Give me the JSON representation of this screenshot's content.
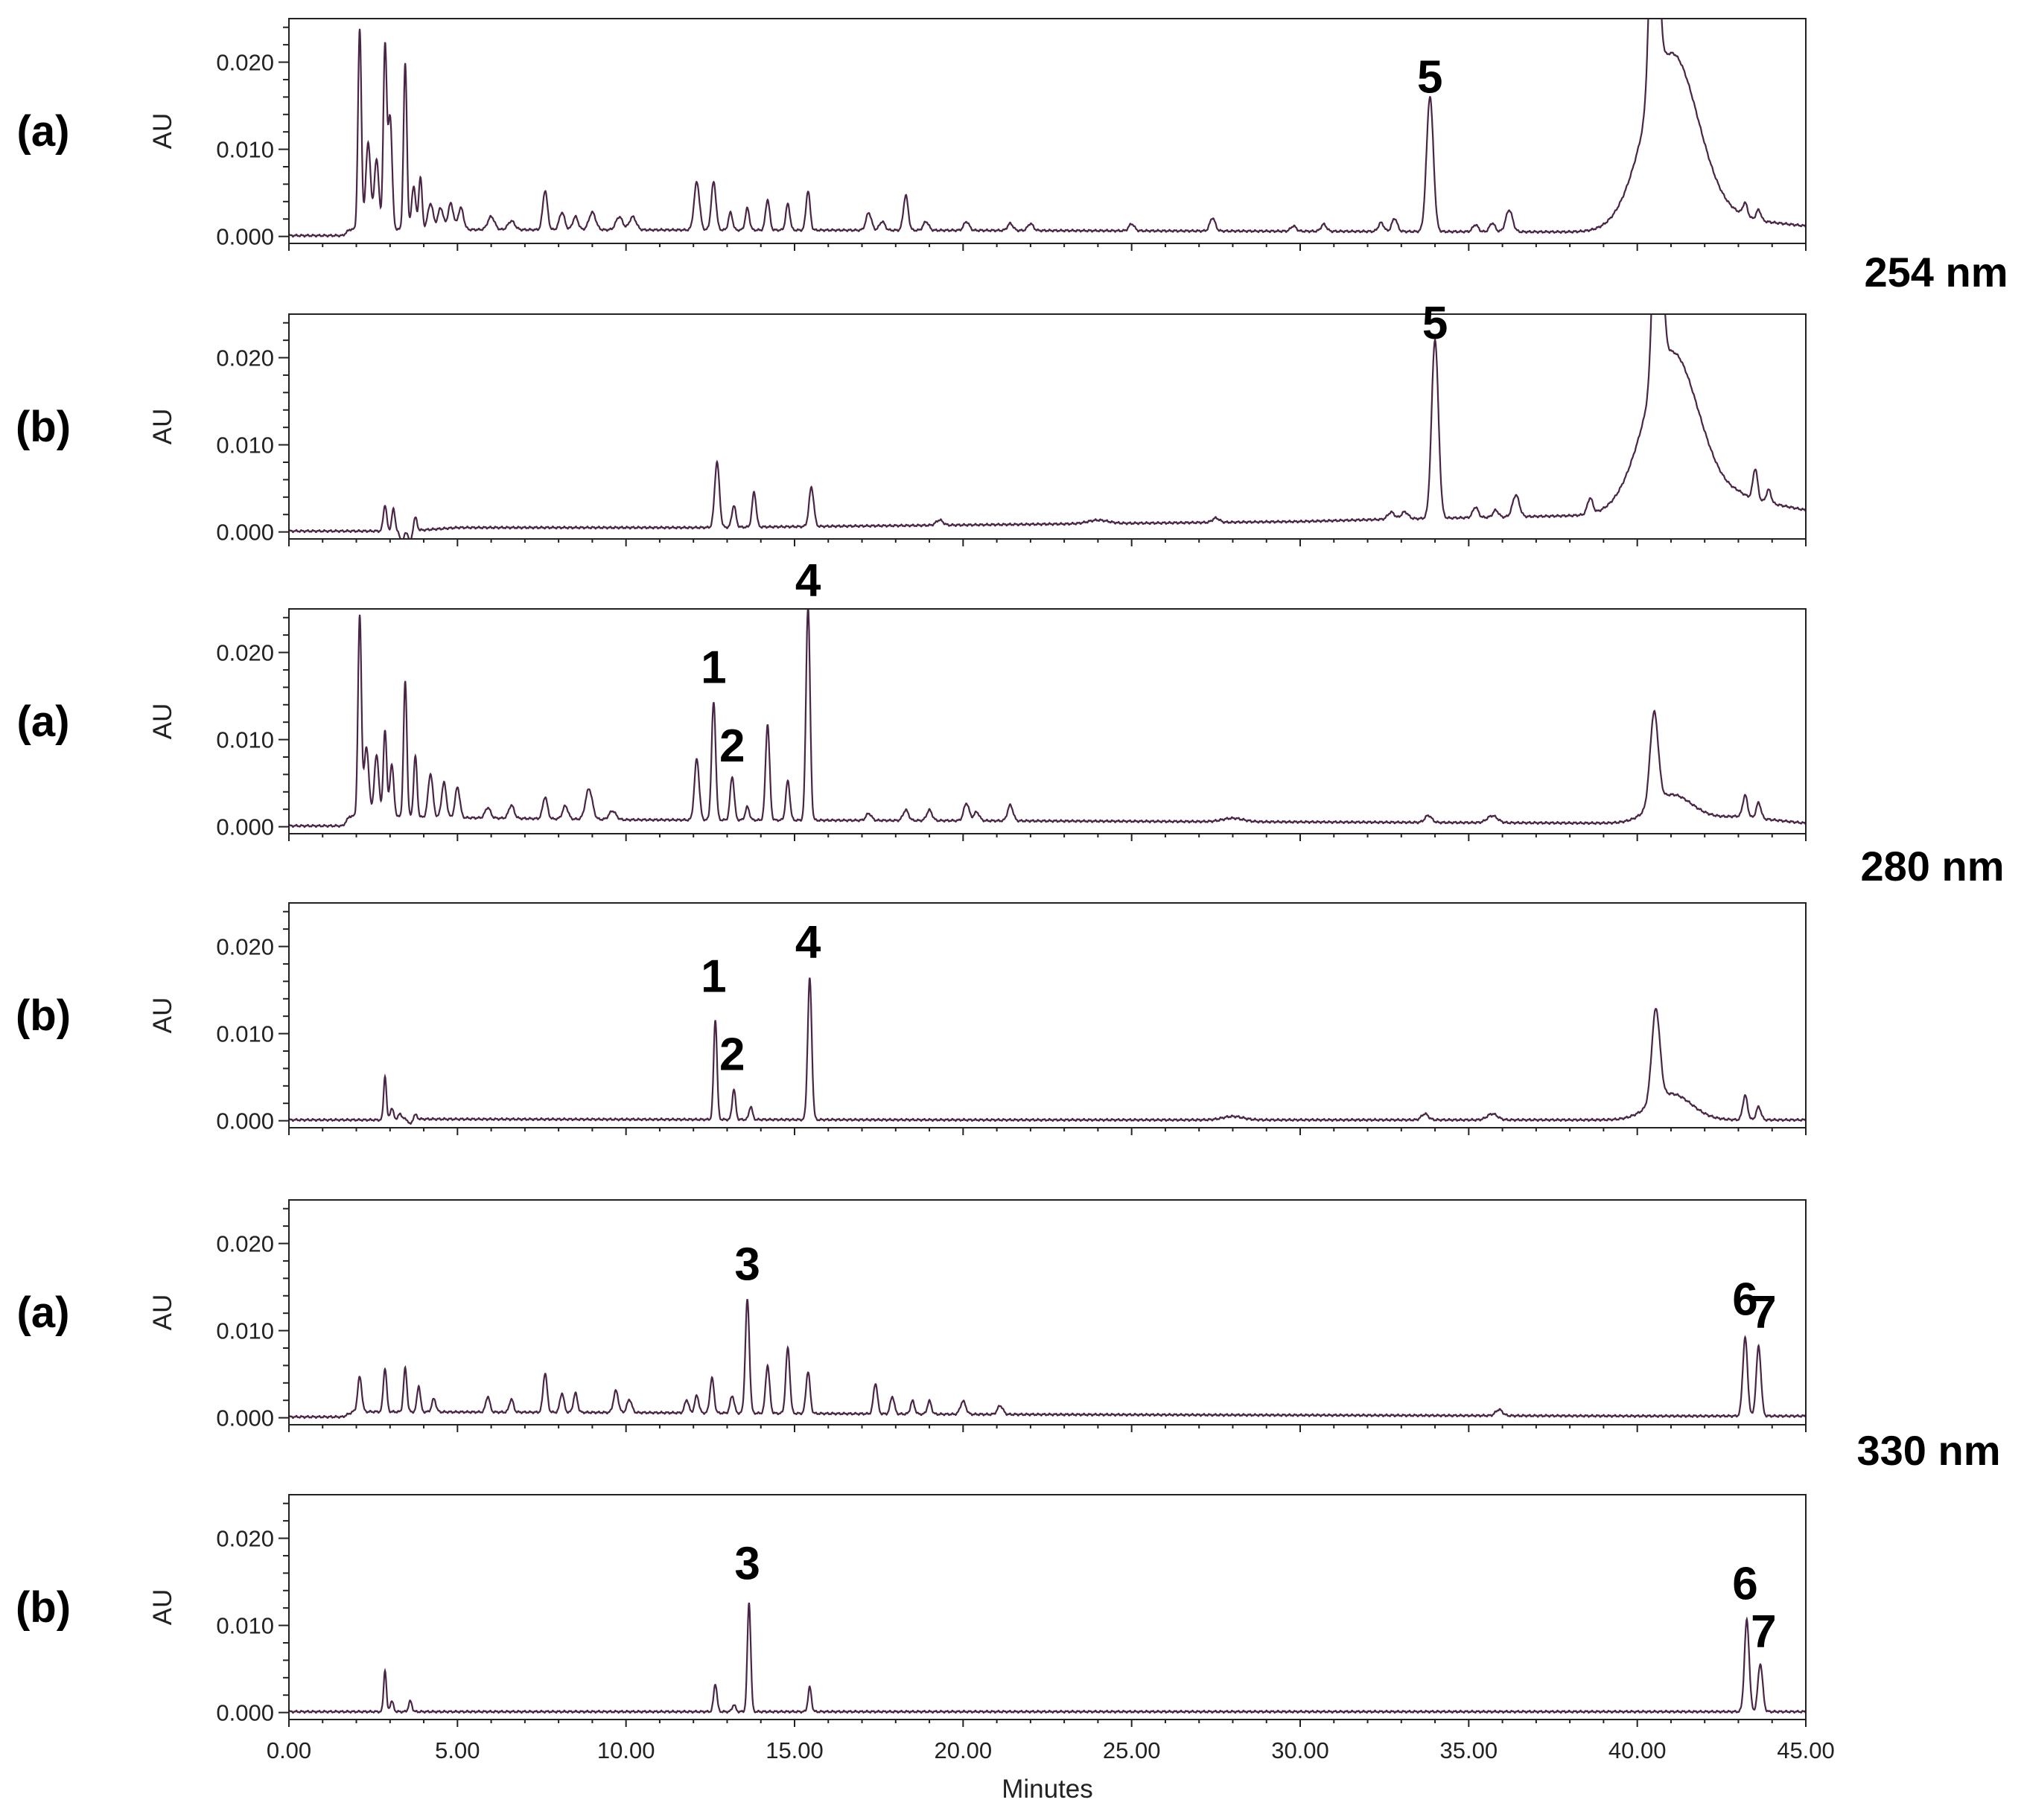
{
  "chart_data": {
    "type": "line",
    "title": "",
    "xlabel": "Minutes",
    "ylabel": "AU",
    "xlim": [
      0,
      45
    ],
    "ylim": [
      -0.0008,
      0.025
    ],
    "x_ticks": [
      "0.00",
      "5.00",
      "10.00",
      "15.00",
      "20.00",
      "25.00",
      "30.00",
      "35.00",
      "40.00",
      "45.00"
    ],
    "y_ticks": [
      "0.000",
      "0.010",
      "0.020"
    ],
    "line_color": "#4a2545",
    "wavelength_groups": [
      {
        "label": "254 nm",
        "panels": [
          0,
          1
        ]
      },
      {
        "label": "280 nm",
        "panels": [
          2,
          3
        ]
      },
      {
        "label": "330 nm",
        "panels": [
          4,
          5
        ]
      }
    ],
    "panels": [
      {
        "label": "(a)",
        "baseline": [
          [
            0,
            0.0001
          ],
          [
            1.6,
            0.0001
          ],
          [
            1.8,
            0.0008
          ],
          [
            20,
            0.0007
          ],
          [
            39.9,
            0.0005
          ],
          [
            43,
            0.002
          ],
          [
            45,
            0.0012
          ]
        ],
        "peaks": [
          [
            2.1,
            0.023,
            0.05
          ],
          [
            2.35,
            0.01,
            0.07
          ],
          [
            2.6,
            0.008,
            0.07
          ],
          [
            2.85,
            0.021,
            0.05
          ],
          [
            3.0,
            0.013,
            0.06
          ],
          [
            3.45,
            0.019,
            0.05
          ],
          [
            3.7,
            0.005,
            0.06
          ],
          [
            3.9,
            0.006,
            0.05
          ],
          [
            4.2,
            0.003,
            0.08
          ],
          [
            4.5,
            0.0025,
            0.08
          ],
          [
            4.8,
            0.003,
            0.08
          ],
          [
            5.1,
            0.0025,
            0.08
          ],
          [
            6.0,
            0.0015,
            0.1
          ],
          [
            6.6,
            0.001,
            0.1
          ],
          [
            7.6,
            0.0045,
            0.07
          ],
          [
            8.1,
            0.002,
            0.08
          ],
          [
            8.5,
            0.0015,
            0.08
          ],
          [
            9.0,
            0.002,
            0.1
          ],
          [
            9.8,
            0.0015,
            0.1
          ],
          [
            10.2,
            0.0015,
            0.1
          ],
          [
            12.1,
            0.0055,
            0.08
          ],
          [
            12.6,
            0.0055,
            0.07
          ],
          [
            13.1,
            0.002,
            0.06
          ],
          [
            13.6,
            0.0025,
            0.06
          ],
          [
            14.2,
            0.0035,
            0.06
          ],
          [
            14.8,
            0.003,
            0.06
          ],
          [
            15.4,
            0.0045,
            0.06
          ],
          [
            17.2,
            0.002,
            0.08
          ],
          [
            17.6,
            0.001,
            0.08
          ],
          [
            18.3,
            0.004,
            0.07
          ],
          [
            18.9,
            0.001,
            0.08
          ],
          [
            20.1,
            0.001,
            0.08
          ],
          [
            21.4,
            0.0008,
            0.08
          ],
          [
            22.0,
            0.0008,
            0.08
          ],
          [
            25.0,
            0.0008,
            0.08
          ],
          [
            27.4,
            0.0015,
            0.08
          ],
          [
            29.8,
            0.0006,
            0.08
          ],
          [
            30.7,
            0.0008,
            0.08
          ],
          [
            32.4,
            0.001,
            0.08
          ],
          [
            32.8,
            0.0015,
            0.08
          ],
          [
            33.85,
            0.0155,
            0.1
          ],
          [
            35.2,
            0.0008,
            0.08
          ],
          [
            35.7,
            0.001,
            0.08
          ],
          [
            36.2,
            0.0025,
            0.1
          ],
          [
            40.5,
            0.03,
            0.12
          ],
          [
            41.0,
            0.02,
            0.8
          ],
          [
            43.2,
            0.0015,
            0.07
          ],
          [
            43.6,
            0.0012,
            0.07
          ]
        ],
        "annotations": [
          {
            "text": "5",
            "x": 33.85,
            "y": 0.0165
          }
        ]
      },
      {
        "label": "(b)",
        "baseline": [
          [
            0,
            0.0001
          ],
          [
            2.5,
            0.0001
          ],
          [
            3.5,
            0.0001
          ],
          [
            5,
            0.0005
          ],
          [
            12,
            0.0005
          ],
          [
            20,
            0.0008
          ],
          [
            30,
            0.0012
          ],
          [
            33,
            0.0015
          ],
          [
            40,
            0.002
          ],
          [
            43,
            0.004
          ],
          [
            45,
            0.0025
          ]
        ],
        "peaks": [
          [
            2.85,
            0.003,
            0.05
          ],
          [
            3.1,
            0.0025,
            0.05
          ],
          [
            3.35,
            -0.0012,
            0.06
          ],
          [
            3.75,
            0.0015,
            0.05
          ],
          [
            3.6,
            -0.0012,
            0.05
          ],
          [
            12.7,
            0.0075,
            0.07
          ],
          [
            13.2,
            0.0025,
            0.06
          ],
          [
            13.8,
            0.004,
            0.06
          ],
          [
            15.5,
            0.0045,
            0.07
          ],
          [
            19.3,
            0.0006,
            0.1
          ],
          [
            24.0,
            0.0004,
            0.3
          ],
          [
            27.5,
            0.0005,
            0.1
          ],
          [
            32.7,
            0.0008,
            0.1
          ],
          [
            33.1,
            0.0008,
            0.1
          ],
          [
            34.0,
            0.0205,
            0.1
          ],
          [
            35.2,
            0.0012,
            0.08
          ],
          [
            35.8,
            0.0008,
            0.08
          ],
          [
            36.4,
            0.0025,
            0.1
          ],
          [
            38.6,
            0.0018,
            0.08
          ],
          [
            40.6,
            0.03,
            0.12
          ],
          [
            41.0,
            0.018,
            0.8
          ],
          [
            43.5,
            0.0035,
            0.07
          ],
          [
            43.9,
            0.0015,
            0.07
          ]
        ],
        "annotations": [
          {
            "text": "5",
            "x": 34.0,
            "y": 0.0222
          }
        ]
      },
      {
        "label": "(a)",
        "baseline": [
          [
            0,
            0.0001
          ],
          [
            1.6,
            0.0001
          ],
          [
            1.8,
            0.0012
          ],
          [
            10,
            0.0008
          ],
          [
            20,
            0.0007
          ],
          [
            39.9,
            0.0004
          ],
          [
            43,
            0.0012
          ],
          [
            45,
            0.0004
          ]
        ],
        "peaks": [
          [
            2.1,
            0.023,
            0.05
          ],
          [
            2.3,
            0.008,
            0.07
          ],
          [
            2.6,
            0.007,
            0.07
          ],
          [
            2.85,
            0.01,
            0.05
          ],
          [
            3.05,
            0.006,
            0.06
          ],
          [
            3.45,
            0.0155,
            0.05
          ],
          [
            3.75,
            0.007,
            0.05
          ],
          [
            4.2,
            0.005,
            0.07
          ],
          [
            4.6,
            0.004,
            0.07
          ],
          [
            5.0,
            0.0035,
            0.07
          ],
          [
            5.9,
            0.0012,
            0.08
          ],
          [
            6.6,
            0.0015,
            0.08
          ],
          [
            7.6,
            0.0025,
            0.07
          ],
          [
            8.2,
            0.0015,
            0.08
          ],
          [
            8.9,
            0.0035,
            0.1
          ],
          [
            9.6,
            0.001,
            0.1
          ],
          [
            12.1,
            0.007,
            0.07
          ],
          [
            12.6,
            0.0135,
            0.06
          ],
          [
            13.15,
            0.005,
            0.06
          ],
          [
            13.6,
            0.0015,
            0.06
          ],
          [
            14.2,
            0.011,
            0.06
          ],
          [
            14.8,
            0.0045,
            0.06
          ],
          [
            15.4,
            0.0245,
            0.06
          ],
          [
            17.2,
            0.0008,
            0.08
          ],
          [
            18.3,
            0.0012,
            0.08
          ],
          [
            19.0,
            0.0012,
            0.08
          ],
          [
            20.1,
            0.002,
            0.08
          ],
          [
            20.4,
            0.001,
            0.08
          ],
          [
            21.4,
            0.0018,
            0.08
          ],
          [
            28.0,
            0.0004,
            0.3
          ],
          [
            33.8,
            0.0008,
            0.1
          ],
          [
            35.7,
            0.0008,
            0.15
          ],
          [
            40.5,
            0.0105,
            0.12
          ],
          [
            41.0,
            0.003,
            0.6
          ],
          [
            43.2,
            0.0025,
            0.07
          ],
          [
            43.6,
            0.0018,
            0.07
          ]
        ],
        "annotations": [
          {
            "text": "1",
            "x": 12.6,
            "y": 0.0165
          },
          {
            "text": "2",
            "x": 13.15,
            "y": 0.0075
          },
          {
            "text": "4",
            "x": 15.4,
            "y": 0.0265
          }
        ]
      },
      {
        "label": "(b)",
        "baseline": [
          [
            0,
            0.0001
          ],
          [
            2.7,
            0.0001
          ],
          [
            2.9,
            0.0002
          ],
          [
            20,
            0.0001
          ],
          [
            45,
            0.0001
          ]
        ],
        "peaks": [
          [
            2.85,
            0.005,
            0.04
          ],
          [
            3.05,
            0.0012,
            0.05
          ],
          [
            3.3,
            0.0006,
            0.05
          ],
          [
            3.6,
            -0.0006,
            0.05
          ],
          [
            3.75,
            0.0005,
            0.05
          ],
          [
            12.65,
            0.0115,
            0.05
          ],
          [
            13.2,
            0.0035,
            0.05
          ],
          [
            13.7,
            0.0015,
            0.05
          ],
          [
            15.45,
            0.0162,
            0.06
          ],
          [
            28.0,
            0.0004,
            0.3
          ],
          [
            33.7,
            0.0007,
            0.1
          ],
          [
            35.7,
            0.0007,
            0.15
          ],
          [
            40.55,
            0.0105,
            0.12
          ],
          [
            41.0,
            0.003,
            0.6
          ],
          [
            43.2,
            0.0028,
            0.07
          ],
          [
            43.6,
            0.0015,
            0.07
          ]
        ],
        "annotations": [
          {
            "text": "1",
            "x": 12.6,
            "y": 0.0148
          },
          {
            "text": "2",
            "x": 13.15,
            "y": 0.0058
          },
          {
            "text": "4",
            "x": 15.4,
            "y": 0.0187
          }
        ]
      },
      {
        "label": "(a)",
        "baseline": [
          [
            0,
            0.0001
          ],
          [
            1.6,
            0.0001
          ],
          [
            1.9,
            0.0007
          ],
          [
            10,
            0.0006
          ],
          [
            20,
            0.0004
          ],
          [
            40,
            0.0002
          ],
          [
            45,
            0.0002
          ]
        ],
        "peaks": [
          [
            2.1,
            0.004,
            0.06
          ],
          [
            2.85,
            0.005,
            0.05
          ],
          [
            3.45,
            0.005,
            0.05
          ],
          [
            3.85,
            0.003,
            0.05
          ],
          [
            4.3,
            0.0015,
            0.06
          ],
          [
            5.9,
            0.0018,
            0.06
          ],
          [
            6.6,
            0.0015,
            0.06
          ],
          [
            7.6,
            0.0045,
            0.06
          ],
          [
            8.1,
            0.0022,
            0.06
          ],
          [
            8.5,
            0.0022,
            0.06
          ],
          [
            9.7,
            0.0025,
            0.07
          ],
          [
            10.1,
            0.0015,
            0.07
          ],
          [
            11.8,
            0.0015,
            0.06
          ],
          [
            12.1,
            0.002,
            0.06
          ],
          [
            12.55,
            0.004,
            0.06
          ],
          [
            13.15,
            0.002,
            0.06
          ],
          [
            13.6,
            0.013,
            0.06
          ],
          [
            14.2,
            0.0055,
            0.06
          ],
          [
            14.8,
            0.0075,
            0.06
          ],
          [
            15.4,
            0.0048,
            0.06
          ],
          [
            17.4,
            0.0035,
            0.06
          ],
          [
            17.9,
            0.002,
            0.06
          ],
          [
            18.5,
            0.0015,
            0.06
          ],
          [
            19.0,
            0.0015,
            0.06
          ],
          [
            20.0,
            0.0015,
            0.08
          ],
          [
            21.1,
            0.001,
            0.08
          ],
          [
            35.9,
            0.0007,
            0.1
          ],
          [
            43.2,
            0.009,
            0.07
          ],
          [
            43.6,
            0.008,
            0.07
          ]
        ],
        "annotations": [
          {
            "text": "3",
            "x": 13.6,
            "y": 0.0158
          },
          {
            "text": "6",
            "x": 43.2,
            "y": 0.0118
          },
          {
            "text": "7",
            "x": 43.75,
            "y": 0.0103
          }
        ]
      },
      {
        "label": "(b)",
        "baseline": [
          [
            0,
            0.0001
          ],
          [
            45,
            0.0001
          ]
        ],
        "peaks": [
          [
            2.85,
            0.0048,
            0.04
          ],
          [
            3.05,
            0.0012,
            0.05
          ],
          [
            3.6,
            0.0012,
            0.05
          ],
          [
            12.65,
            0.0032,
            0.05
          ],
          [
            13.2,
            0.0008,
            0.05
          ],
          [
            13.65,
            0.0125,
            0.05
          ],
          [
            15.45,
            0.0028,
            0.05
          ],
          [
            43.25,
            0.0105,
            0.07
          ],
          [
            43.65,
            0.0055,
            0.07
          ]
        ],
        "annotations": [
          {
            "text": "3",
            "x": 13.6,
            "y": 0.0153
          },
          {
            "text": "6",
            "x": 43.2,
            "y": 0.013
          },
          {
            "text": "7",
            "x": 43.75,
            "y": 0.0075
          }
        ]
      }
    ]
  }
}
